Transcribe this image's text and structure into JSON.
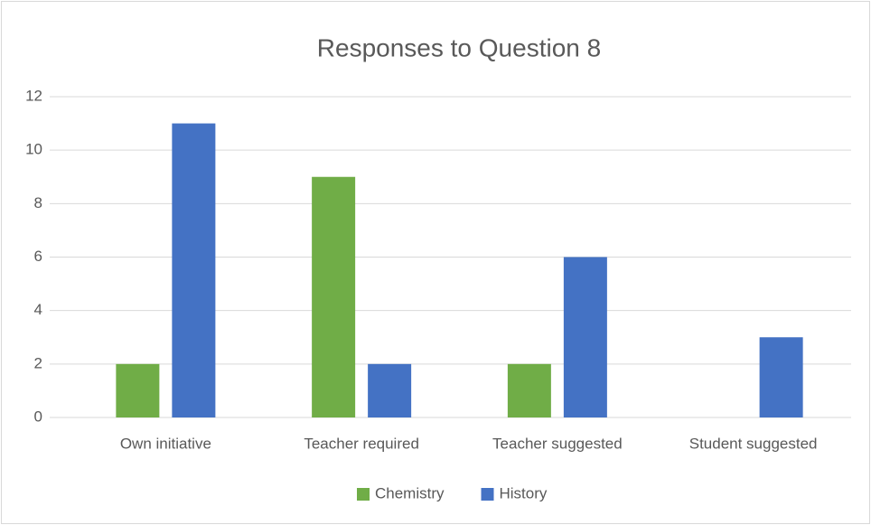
{
  "chart_data": {
    "type": "bar",
    "title": "Responses to Question 8",
    "categories": [
      "Own initiative",
      "Teacher required",
      "Teacher suggested",
      "Student suggested"
    ],
    "series": [
      {
        "name": "Chemistry",
        "color": "#70ad47",
        "values": [
          2,
          9,
          2,
          0
        ]
      },
      {
        "name": "History",
        "color": "#4472c4",
        "values": [
          11,
          2,
          6,
          3
        ]
      }
    ],
    "ylim": [
      0,
      12
    ],
    "yticks": [
      0,
      2,
      4,
      6,
      8,
      10,
      12
    ],
    "grid": true,
    "legend": "bottom"
  }
}
